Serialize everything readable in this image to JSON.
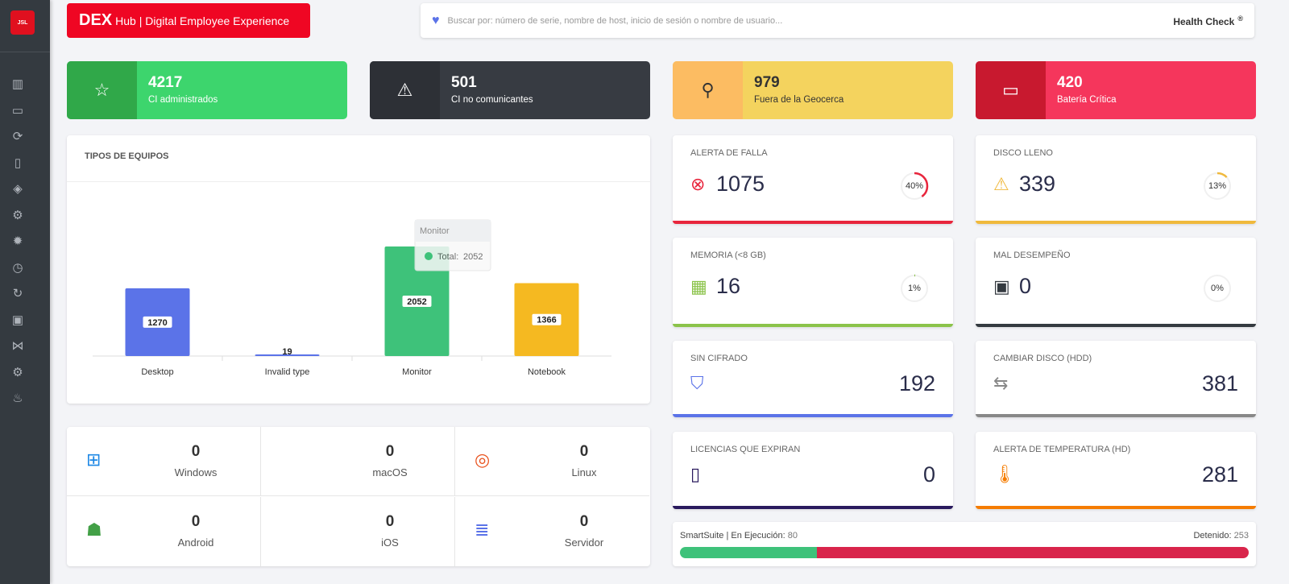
{
  "sidebar": {
    "logo": "JSL",
    "items": [
      "barcode-icon",
      "inbox-icon",
      "sync-check-icon",
      "mobile-settings-icon",
      "layers-icon",
      "search-gear-icon",
      "gear-icon",
      "alarm-icon",
      "refresh-icon",
      "device-icon",
      "network-icon",
      "settings-search-icon",
      "fire-icon"
    ]
  },
  "header": {
    "brand_strong": "DEX",
    "brand_rest": "Hub | Digital Employee Experience",
    "search_placeholder": "Buscar por: número de serie, nombre de host, inicio de sesión o nombre de usuario...",
    "health_check": "Health Check",
    "health_mark": "®"
  },
  "stats": [
    {
      "value": "4217",
      "label": "CI administrados",
      "color": "#3dd56d",
      "dark": "#30a849",
      "icon": "star-icon"
    },
    {
      "value": "501",
      "label": "CI no comunicantes",
      "color": "#373b42",
      "dark": "#2d3036",
      "icon": "warning-icon"
    },
    {
      "value": "979",
      "label": "Fuera de la Geocerca",
      "color": "#f4d35e",
      "dark": "#fcbc62",
      "icon": "location-pin-icon",
      "text": "#333"
    },
    {
      "value": "420",
      "label": "Batería Crítica",
      "color": "#f5365c",
      "dark": "#c8192f",
      "icon": "battery-icon"
    }
  ],
  "chart_data": {
    "type": "bar",
    "title": "TIPOS DE EQUIPOS",
    "categories": [
      "Desktop",
      "Invalid type",
      "Monitor",
      "Notebook"
    ],
    "values": [
      1270,
      19,
      2052,
      1366
    ],
    "colors": [
      "#5b73e8",
      "#5b73e8",
      "#3ec27a",
      "#f5b921"
    ],
    "tooltip": {
      "title": "Monitor",
      "label": "Total:",
      "value": "2052"
    }
  },
  "os": [
    {
      "name": "Windows",
      "value": "0",
      "icon": "windows-icon"
    },
    {
      "name": "macOS",
      "value": "0",
      "icon": "apple-icon"
    },
    {
      "name": "Linux",
      "value": "0",
      "icon": "ubuntu-icon"
    },
    {
      "name": "Android",
      "value": "0",
      "icon": "android-icon"
    },
    {
      "name": "iOS",
      "value": "0",
      "icon": "apple-icon"
    },
    {
      "name": "Servidor",
      "value": "0",
      "icon": "database-icon"
    }
  ],
  "metrics": [
    {
      "title": "ALERTA DE FALLA",
      "value": "1075",
      "percent": 40,
      "pct_label": "40%",
      "color": "#e8263d",
      "icon": "x-circle-icon"
    },
    {
      "title": "DISCO LLENO",
      "value": "339",
      "percent": 13,
      "pct_label": "13%",
      "color": "#f0b93d",
      "icon": "warning-icon"
    },
    {
      "title": "MEMORIA (<8 GB)",
      "value": "16",
      "percent": 1,
      "pct_label": "1%",
      "color": "#8bc34a",
      "icon": "memory-icon"
    },
    {
      "title": "MAL DESEMPEÑO",
      "value": "0",
      "percent": 0,
      "pct_label": "0%",
      "color": "#343a40",
      "icon": "cpu-icon"
    },
    {
      "title": "SIN CIFRADO",
      "value": "192",
      "color": "#5b73e8",
      "icon": "shield-check-icon"
    },
    {
      "title": "CAMBIAR DISCO (HDD)",
      "value": "381",
      "color": "#888888",
      "icon": "swap-arrows-icon"
    },
    {
      "title": "LICENCIAS QUE EXPIRAN",
      "value": "0",
      "color": "#2a1a5e",
      "icon": "file-icon"
    },
    {
      "title": "ALERTA DE TEMPERATURA (HD)",
      "value": "281",
      "color": "#f57c00",
      "icon": "thermometer-icon"
    }
  ],
  "smartsuite": {
    "label": "SmartSuite | En Ejecución:",
    "running": "80",
    "stopped_label": "Detenido:",
    "stopped": "253",
    "running_color": "#3ec27a",
    "stopped_color": "#d9254b"
  }
}
